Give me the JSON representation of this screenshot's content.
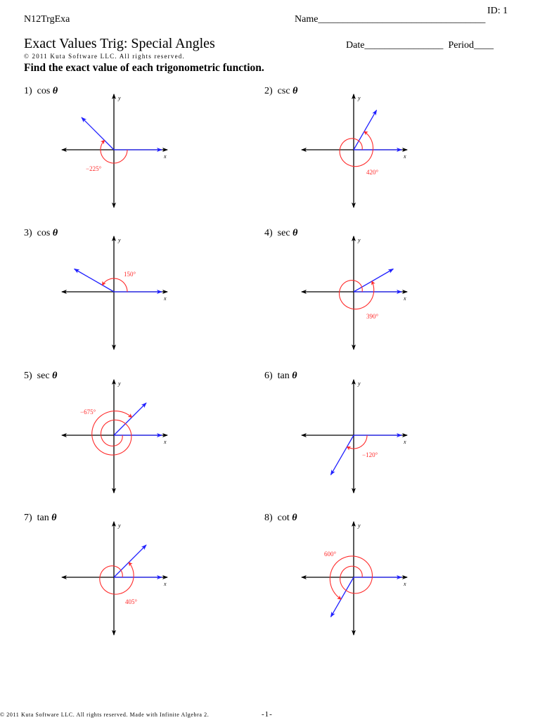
{
  "header": {
    "worksheet_code": "N12TrgExa",
    "id_label": "ID: 1",
    "name_field": "Name__________________________________",
    "title": "Exact Values Trig: Special Angles",
    "copyright": "© 2011 Kuta Software LLC.  All rights reserved.",
    "date_field": "Date________________",
    "period_field": "Period____",
    "instructions": "Find the exact value of each trigonometric function."
  },
  "colors": {
    "axis": "#000000",
    "terminal_ray": "#2020ff",
    "angle_arc": "#ff2a2a",
    "text": "#000000"
  },
  "problems": [
    {
      "number": "1)",
      "function": "cos",
      "variable": "θ",
      "angle_label": "−225°",
      "angle_deg": -225
    },
    {
      "number": "2)",
      "function": "csc",
      "variable": "θ",
      "angle_label": "420°",
      "angle_deg": 420
    },
    {
      "number": "3)",
      "function": "cos",
      "variable": "θ",
      "angle_label": "150°",
      "angle_deg": 150
    },
    {
      "number": "4)",
      "function": "sec",
      "variable": "θ",
      "angle_label": "390°",
      "angle_deg": 390
    },
    {
      "number": "5)",
      "function": "sec",
      "variable": "θ",
      "angle_label": "−675°",
      "angle_deg": -675
    },
    {
      "number": "6)",
      "function": "tan",
      "variable": "θ",
      "angle_label": "−120°",
      "angle_deg": -120
    },
    {
      "number": "7)",
      "function": "tan",
      "variable": "θ",
      "angle_label": "405°",
      "angle_deg": 405
    },
    {
      "number": "8)",
      "function": "cot",
      "variable": "θ",
      "angle_label": "600°",
      "angle_deg": 600
    }
  ],
  "axis_labels": {
    "x": "x",
    "y": "y"
  },
  "footer": {
    "text": "© 2011 Kuta Software LLC.  All rights reserved.  Made with Infinite Algebra 2.",
    "page_number": "-1-"
  }
}
